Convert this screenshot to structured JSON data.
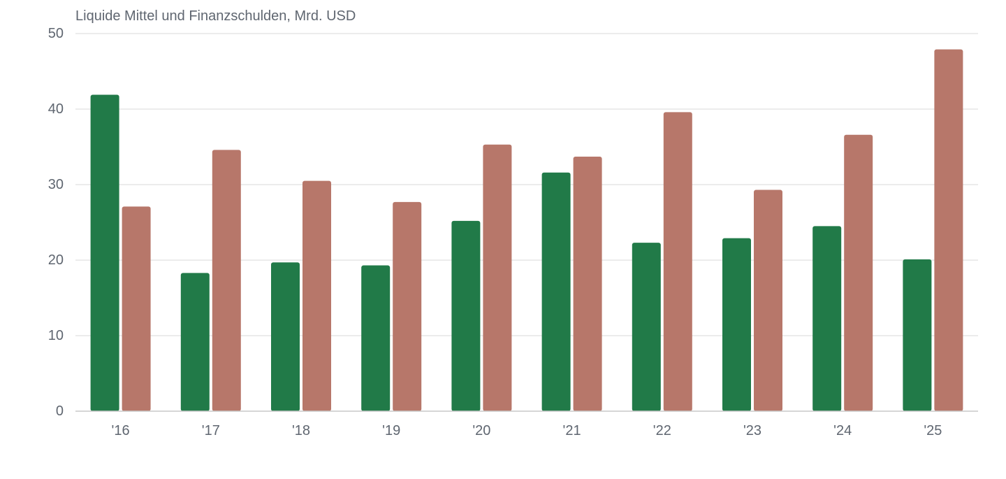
{
  "chart_data": {
    "type": "bar",
    "title": "Liquide Mittel und Finanzschulden, Mrd. USD",
    "categories": [
      "'16",
      "'17",
      "'18",
      "'19",
      "'20",
      "'21",
      "'22",
      "'23",
      "'24",
      "'25"
    ],
    "series": [
      {
        "color": "#217a48",
        "values": [
          41.9,
          18.3,
          19.7,
          19.3,
          25.2,
          31.6,
          22.3,
          22.9,
          24.5,
          20.1
        ]
      },
      {
        "color": "#b7776a",
        "values": [
          27.1,
          34.6,
          30.5,
          27.7,
          35.3,
          33.7,
          39.6,
          29.3,
          36.6,
          47.9
        ]
      }
    ],
    "ylim": [
      0,
      50
    ],
    "yticks": [
      0,
      10,
      20,
      30,
      40,
      50
    ],
    "grid": true,
    "legend": "none"
  },
  "colors": {
    "gridline": "#e6e6e6",
    "axis_line": "#c8c8c8",
    "tick_text": "#5f6670"
  }
}
